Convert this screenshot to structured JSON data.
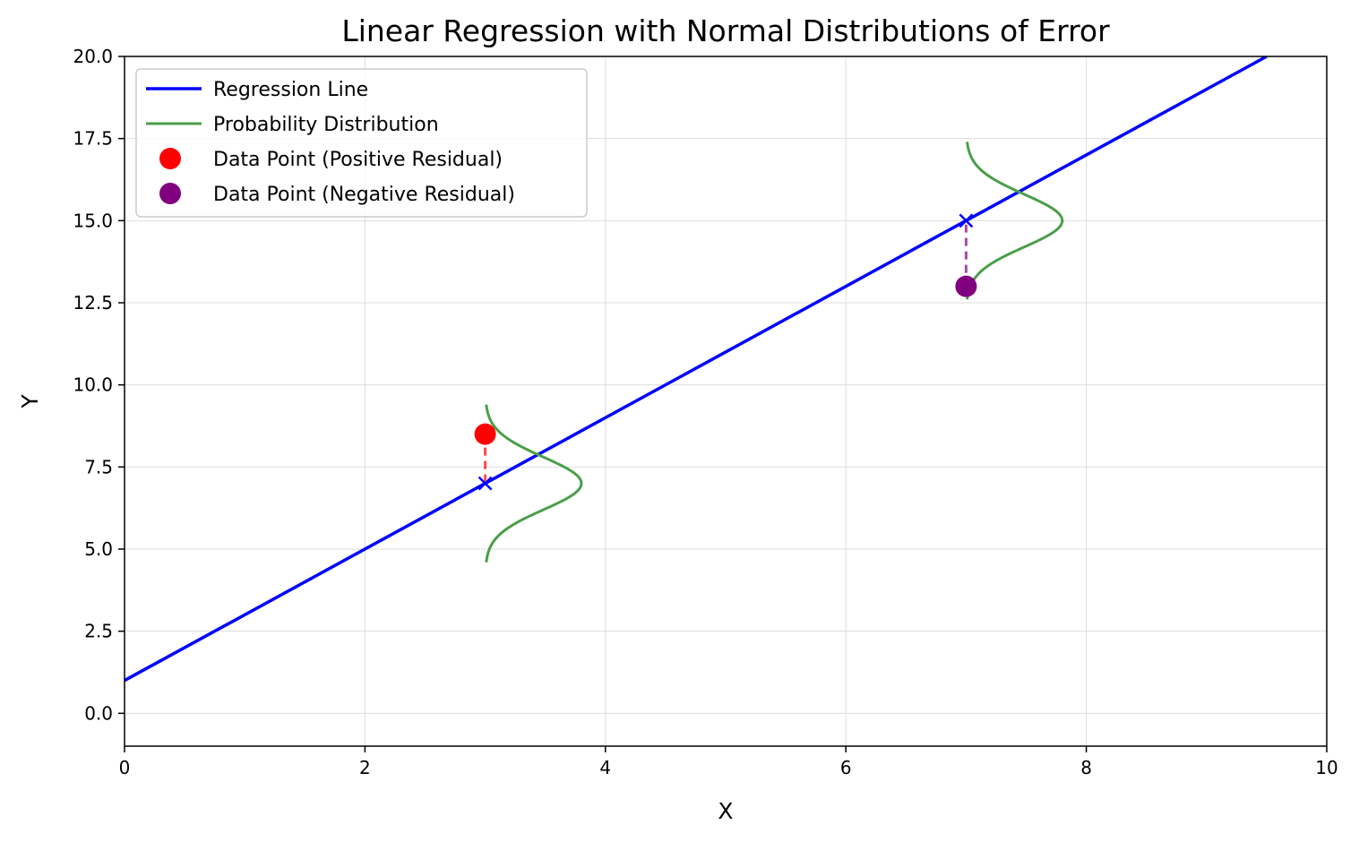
{
  "chart_data": {
    "type": "line",
    "title": "Linear Regression with Normal Distributions of Error",
    "xlabel": "X",
    "ylabel": "Y",
    "xlim": [
      0,
      10
    ],
    "ylim": [
      -1,
      20
    ],
    "xticks": [
      0,
      2,
      4,
      6,
      8,
      10
    ],
    "yticks": [
      0.0,
      2.5,
      5.0,
      7.5,
      10.0,
      12.5,
      15.0,
      17.5,
      20.0
    ],
    "xtick_labels": [
      "0",
      "2",
      "4",
      "6",
      "8",
      "10"
    ],
    "ytick_labels": [
      "0.0",
      "2.5",
      "5.0",
      "7.5",
      "10.0",
      "12.5",
      "15.0",
      "17.5",
      "20.0"
    ],
    "grid": true,
    "legend_position": "top-left",
    "regression_line": {
      "name": "Regression Line",
      "slope": 2,
      "intercept": 1,
      "x": [
        0,
        9.5
      ],
      "y": [
        1,
        20
      ],
      "color": "#0000ff"
    },
    "distributions": {
      "name": "Probability Distribution",
      "color": "#4a9e4a",
      "items": [
        {
          "x": 3,
          "mean": 7,
          "sigma": 0.8,
          "y_range": [
            4.6,
            9.4
          ],
          "peak_dx": 0.8
        },
        {
          "x": 7,
          "mean": 15,
          "sigma": 0.8,
          "y_range": [
            12.6,
            17.4
          ],
          "peak_dx": 0.8
        }
      ]
    },
    "points": [
      {
        "name": "Data Point (Positive Residual)",
        "x": 3,
        "y": 8.5,
        "predicted": 7,
        "color": "#ff0000"
      },
      {
        "name": "Data Point (Negative Residual)",
        "x": 7,
        "y": 13,
        "predicted": 15,
        "color": "#800080"
      }
    ],
    "predicted_marker_color": "#0000ff",
    "legend": [
      {
        "label": "Regression Line",
        "kind": "line",
        "color": "#0000ff"
      },
      {
        "label": "Probability Distribution",
        "kind": "line",
        "color": "#4a9e4a"
      },
      {
        "label": "Data Point (Positive Residual)",
        "kind": "marker",
        "color": "#ff0000"
      },
      {
        "label": "Data Point (Negative Residual)",
        "kind": "marker",
        "color": "#800080"
      }
    ]
  }
}
